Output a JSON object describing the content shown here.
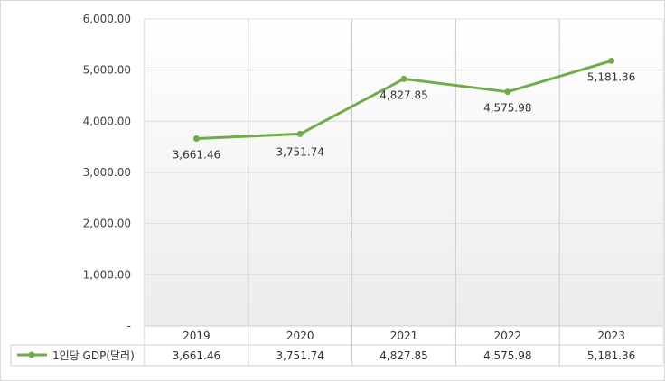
{
  "chart_data": {
    "type": "line",
    "categories": [
      "2019",
      "2020",
      "2021",
      "2022",
      "2023"
    ],
    "y_ticks": [
      "6,000.00",
      "5,000.00",
      "4,000.00",
      "3,000.00",
      "2,000.00",
      "1,000.00",
      "-"
    ],
    "ylim": [
      0,
      6000
    ],
    "series": [
      {
        "name": "1인당 GDP(달러)",
        "values": [
          3661.46,
          3751.74,
          4827.85,
          4575.98,
          5181.36
        ],
        "labels": [
          "3,661.46",
          "3,751.74",
          "4,827.85",
          "4,575.98",
          "5,181.36"
        ],
        "color": "#70ad47"
      }
    ],
    "grid": true,
    "legend": "bottom-left data table"
  }
}
